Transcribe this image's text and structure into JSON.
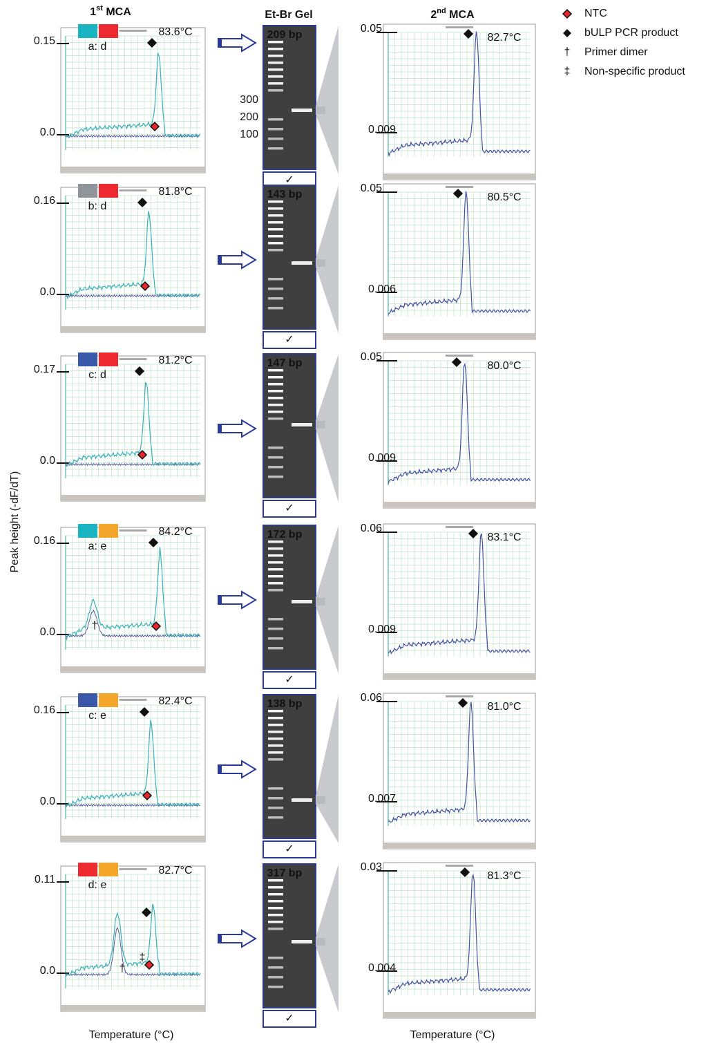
{
  "headers": {
    "mca1": {
      "main": "1",
      "sup": "st",
      "rest": " MCA"
    },
    "gel": "Et-Br Gel",
    "mca2": {
      "main": "2",
      "sup": "nd",
      "rest": " MCA"
    }
  },
  "legend": [
    {
      "label": "NTC"
    },
    {
      "label": "bULP PCR product"
    },
    {
      "symbol": "†",
      "label": "Primer dimer"
    },
    {
      "symbol": "‡",
      "label": "Non-specific product"
    }
  ],
  "y_axis_label": "Peak height (-dF/dT)",
  "x_axis_labels": [
    "Temperature (°C)",
    "Temperature (°C)"
  ],
  "ladder_labels": [
    "300",
    "200",
    "100"
  ],
  "rows": [
    {
      "first": {
        "ytop": "0.15",
        "ybottom": "0.0",
        "peak": "83.6°C",
        "pair": "a: d",
        "swatches": [
          "#19b3c1",
          "#ec2a30"
        ]
      },
      "gel": {
        "size": "209 bp",
        "check": "✓"
      },
      "second": {
        "ytop": "0.05",
        "ybottom": "0.009",
        "peak": "82.7°C"
      }
    },
    {
      "first": {
        "ytop": "0.16",
        "ybottom": "0.0",
        "peak": "81.8°C",
        "pair": "b: d",
        "swatches": [
          "#8f959b",
          "#ec2a30"
        ]
      },
      "gel": {
        "size": "143 bp",
        "check": "✓"
      },
      "second": {
        "ytop": "0.05",
        "ybottom": "0.006",
        "peak": "80.5°C"
      }
    },
    {
      "first": {
        "ytop": "0.17",
        "ybottom": "0.0",
        "peak": "81.2°C",
        "pair": "c: d",
        "swatches": [
          "#3a58a8",
          "#ec2a30"
        ]
      },
      "gel": {
        "size": "147 bp",
        "check": "✓"
      },
      "second": {
        "ytop": "0.05",
        "ybottom": "0.009",
        "peak": "80.0°C"
      }
    },
    {
      "first": {
        "ytop": "0.16",
        "ybottom": "0.0",
        "peak": "84.2°C",
        "pair": "a: e",
        "swatches": [
          "#19b3c1",
          "#f4a62a"
        ],
        "annotations": [
          "†"
        ]
      },
      "gel": {
        "size": "172 bp",
        "check": "✓"
      },
      "second": {
        "ytop": "0.06",
        "ybottom": "0.009",
        "peak": "83.1°C"
      }
    },
    {
      "first": {
        "ytop": "0.16",
        "ybottom": "0.0",
        "peak": "82.4°C",
        "pair": "c: e",
        "swatches": [
          "#3a58a8",
          "#f4a62a"
        ]
      },
      "gel": {
        "size": "138 bp",
        "check": "✓"
      },
      "second": {
        "ytop": "0.06",
        "ybottom": "0.007",
        "peak": "81.0°C"
      }
    },
    {
      "first": {
        "ytop": "0.11",
        "ybottom": "0.0",
        "peak": "82.7°C",
        "pair": "d: e",
        "swatches": [
          "#ec2a30",
          "#f4a62a"
        ],
        "annotations": [
          "†",
          "‡"
        ]
      },
      "gel": {
        "size": "317 bp",
        "check": "✓"
      },
      "second": {
        "ytop": "0.03",
        "ybottom": "0.004",
        "peak": "81.3°C"
      }
    }
  ]
}
